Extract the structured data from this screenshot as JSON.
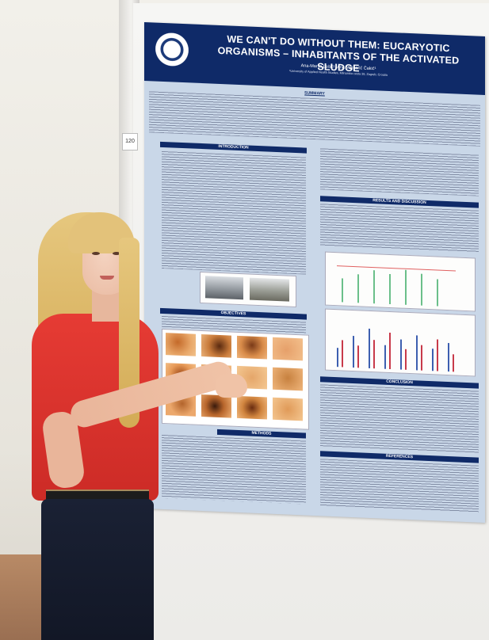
{
  "poster": {
    "title": "WE CAN'T DO WITHOUT THEM: EUCARYOTIC ORGANISMS – INHABITANTS OF THE ACTIVATED SLUDGE",
    "authors": "Ana-Marija Lešić¹, Ana Majnarić Čakić¹",
    "affiliation": "¹University of Applied Health Studies, Mlinarska cesta 38, Zagreb, Croatia",
    "board_number": "120",
    "sections": {
      "summary": "SUMMARY",
      "introduction": "INTRODUCTION",
      "objectives": "OBJECTIVES",
      "methods": "METHODS",
      "results": "RESULTS AND DISCUSSION",
      "conclusion": "CONCLUSION",
      "references": "REFERENCES"
    }
  },
  "colors": {
    "poster_header": "#0f2a68",
    "poster_background": "#c9d7e8",
    "shirt": "#e63b34",
    "hair": "#e3c27a"
  }
}
